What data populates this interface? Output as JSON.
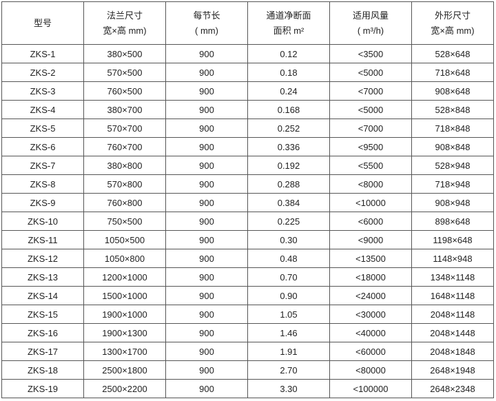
{
  "headers": [
    {
      "line1": "型号",
      "line2": ""
    },
    {
      "line1": "法兰尺寸",
      "line2": "宽×高 mm)"
    },
    {
      "line1": "每节长",
      "line2": "( mm)"
    },
    {
      "line1": "通道净断面",
      "line2": "面积 m²"
    },
    {
      "line1": "适用风量",
      "line2": "( m³/h)"
    },
    {
      "line1": "外形尺寸",
      "line2": "宽×高 mm)"
    }
  ],
  "rows": [
    [
      "ZKS-1",
      "380×500",
      "900",
      "0.12",
      "<3500",
      "528×648"
    ],
    [
      "ZKS-2",
      "570×500",
      "900",
      "0.18",
      "<5000",
      "718×648"
    ],
    [
      "ZKS-3",
      "760×500",
      "900",
      "0.24",
      "<7000",
      "908×648"
    ],
    [
      "ZKS-4",
      "380×700",
      "900",
      "0.168",
      "<5000",
      "528×848"
    ],
    [
      "ZKS-5",
      "570×700",
      "900",
      "0.252",
      "<7000",
      "718×848"
    ],
    [
      "ZKS-6",
      "760×700",
      "900",
      "0.336",
      "<9500",
      "908×848"
    ],
    [
      "ZKS-7",
      "380×800",
      "900",
      "0.192",
      "<5500",
      "528×948"
    ],
    [
      "ZKS-8",
      "570×800",
      "900",
      "0.288",
      "<8000",
      "718×948"
    ],
    [
      "ZKS-9",
      "760×800",
      "900",
      "0.384",
      "<10000",
      "908×948"
    ],
    [
      "ZKS-10",
      "750×500",
      "900",
      "0.225",
      "<6000",
      "898×648"
    ],
    [
      "ZKS-11",
      "1050×500",
      "900",
      "0.30",
      "<9000",
      "1198×648"
    ],
    [
      "ZKS-12",
      "1050×800",
      "900",
      "0.48",
      "<13500",
      "1148×948"
    ],
    [
      "ZKS-13",
      "1200×1000",
      "900",
      "0.70",
      "<18000",
      "1348×1148"
    ],
    [
      "ZKS-14",
      "1500×1000",
      "900",
      "0.90",
      "<24000",
      "1648×1148"
    ],
    [
      "ZKS-15",
      "1900×1000",
      "900",
      "1.05",
      "<30000",
      "2048×1148"
    ],
    [
      "ZKS-16",
      "1900×1300",
      "900",
      "1.46",
      "<40000",
      "2048×1448"
    ],
    [
      "ZKS-17",
      "1300×1700",
      "900",
      "1.91",
      "<60000",
      "2048×1848"
    ],
    [
      "ZKS-18",
      "2500×1800",
      "900",
      "2.70",
      "<80000",
      "2648×1948"
    ],
    [
      "ZKS-19",
      "2500×2200",
      "900",
      "3.30",
      "<100000",
      "2648×2348"
    ]
  ]
}
